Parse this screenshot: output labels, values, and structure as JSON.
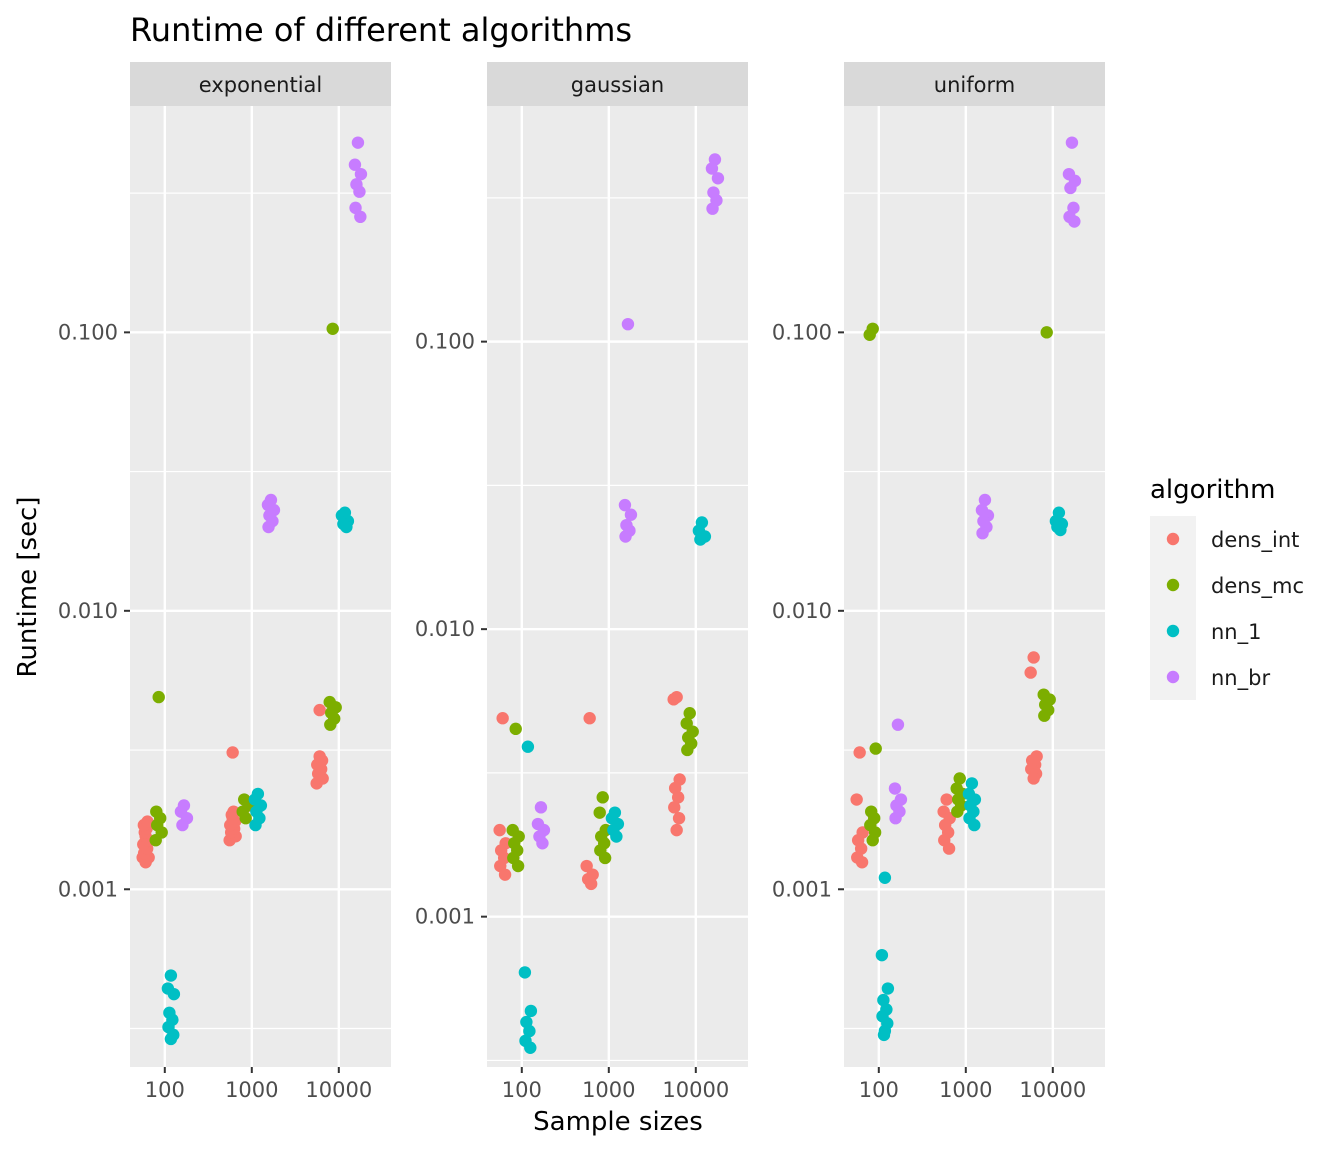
{
  "chart_data": {
    "type": "scatter",
    "title": "Runtime of different algorithms",
    "xlabel": "Sample sizes",
    "ylabel": "Runtime [sec]",
    "x_scale": "log10",
    "y_scale": "log10",
    "x_ticks": [
      100,
      1000,
      10000
    ],
    "x_tick_labels": [
      "100",
      "1000",
      "10000"
    ],
    "y_ticks": [
      0.001,
      0.01,
      0.1
    ],
    "y_tick_labels": [
      "0.001",
      "0.010",
      "0.100"
    ],
    "grid": true,
    "legend": {
      "title": "algorithm",
      "position": "right"
    },
    "series_names": [
      "dens_int",
      "dens_mc",
      "nn_1",
      "nn_br"
    ],
    "colors": {
      "dens_int": "#F8766D",
      "dens_mc": "#7CAE00",
      "nn_1": "#00BFC4",
      "nn_br": "#C77CFF"
    },
    "panels": [
      {
        "name": "exponential",
        "ylim": [
          0.00023,
          0.65
        ],
        "series": [
          {
            "name": "dens_int",
            "points": [
              {
                "x": 100,
                "y": [
                  0.00125,
                  0.0013,
                  0.0013,
                  0.00135,
                  0.0014,
                  0.00145,
                  0.0015,
                  0.00155,
                  0.0016,
                  0.00165,
                  0.0017,
                  0.00175
                ]
              },
              {
                "x": 1000,
                "y": [
                  0.0031,
                  0.0015,
                  0.00155,
                  0.0016,
                  0.00165,
                  0.0017,
                  0.00175,
                  0.0018,
                  0.00185,
                  0.0019
                ]
              },
              {
                "x": 10000,
                "y": [
                  0.0044,
                  0.0024,
                  0.0025,
                  0.0026,
                  0.0027,
                  0.0028,
                  0.0029,
                  0.003
                ]
              }
            ]
          },
          {
            "name": "dens_mc",
            "points": [
              {
                "x": 100,
                "y": [
                  0.0049,
                  0.0015,
                  0.0016,
                  0.0017,
                  0.0018,
                  0.0019
                ]
              },
              {
                "x": 1000,
                "y": [
                  0.0018,
                  0.0019,
                  0.002,
                  0.0021
                ]
              },
              {
                "x": 10000,
                "y": [
                  0.103,
                  0.0047,
                  0.0045,
                  0.0043,
                  0.0041,
                  0.0039
                ]
              }
            ]
          },
          {
            "name": "nn_1",
            "points": [
              {
                "x": 100,
                "y": [
                  0.00049,
                  0.00044,
                  0.00042,
                  0.00036,
                  0.00034,
                  0.00032,
                  0.0003,
                  0.00029
                ]
              },
              {
                "x": 1000,
                "y": [
                  0.0022,
                  0.0021,
                  0.002,
                  0.0019,
                  0.0018,
                  0.0017
                ]
              },
              {
                "x": 10000,
                "y": [
                  0.0225,
                  0.022,
                  0.021,
                  0.0205,
                  0.02
                ]
              }
            ]
          },
          {
            "name": "nn_br",
            "points": [
              {
                "x": 100,
                "y": [
                  0.002,
                  0.0019,
                  0.0018,
                  0.0017
                ]
              },
              {
                "x": 1000,
                "y": [
                  0.025,
                  0.024,
                  0.023,
                  0.022,
                  0.021,
                  0.02
                ]
              },
              {
                "x": 10000,
                "y": [
                  0.48,
                  0.4,
                  0.37,
                  0.34,
                  0.32,
                  0.28,
                  0.26
                ]
              }
            ]
          }
        ]
      },
      {
        "name": "gaussian",
        "ylim": [
          0.0003,
          0.66
        ],
        "series": [
          {
            "name": "dens_int",
            "points": [
              {
                "x": 100,
                "y": [
                  0.0049,
                  0.002,
                  0.0018,
                  0.0017,
                  0.0016,
                  0.0015,
                  0.0014
                ]
              },
              {
                "x": 1000,
                "y": [
                  0.0049,
                  0.0015,
                  0.0014,
                  0.00135,
                  0.0013
                ]
              },
              {
                "x": 10000,
                "y": [
                  0.0058,
                  0.0057,
                  0.003,
                  0.0028,
                  0.0026,
                  0.0024,
                  0.0022,
                  0.002
                ]
              }
            ]
          },
          {
            "name": "dens_mc",
            "points": [
              {
                "x": 100,
                "y": [
                  0.0045,
                  0.002,
                  0.0019,
                  0.0018,
                  0.0017,
                  0.0016,
                  0.0015
                ]
              },
              {
                "x": 1000,
                "y": [
                  0.0026,
                  0.0023,
                  0.002,
                  0.0019,
                  0.0018,
                  0.0017,
                  0.0016
                ]
              },
              {
                "x": 10000,
                "y": [
                  0.0051,
                  0.0047,
                  0.0044,
                  0.0042,
                  0.004,
                  0.0038
                ]
              }
            ]
          },
          {
            "name": "nn_1",
            "points": [
              {
                "x": 100,
                "y": [
                  0.0039,
                  0.00064,
                  0.00047,
                  0.00043,
                  0.0004,
                  0.00037,
                  0.00035
                ]
              },
              {
                "x": 1000,
                "y": [
                  0.0023,
                  0.0022,
                  0.0021,
                  0.002,
                  0.0019
                ]
              },
              {
                "x": 10000,
                "y": [
                  0.0235,
                  0.022,
                  0.021,
                  0.0205
                ]
              }
            ]
          },
          {
            "name": "nn_br",
            "points": [
              {
                "x": 100,
                "y": [
                  0.0024,
                  0.0021,
                  0.002,
                  0.0019,
                  0.0018
                ]
              },
              {
                "x": 1000,
                "y": [
                  0.115,
                  0.027,
                  0.025,
                  0.023,
                  0.022,
                  0.021
                ]
              },
              {
                "x": 10000,
                "y": [
                  0.43,
                  0.4,
                  0.37,
                  0.33,
                  0.31,
                  0.29
                ]
              }
            ]
          }
        ]
      },
      {
        "name": "uniform",
        "ylim": [
          0.00023,
          0.65
        ],
        "series": [
          {
            "name": "dens_int",
            "points": [
              {
                "x": 100,
                "y": [
                  0.0031,
                  0.0021,
                  0.0016,
                  0.0015,
                  0.0014,
                  0.0013,
                  0.00125
                ]
              },
              {
                "x": 1000,
                "y": [
                  0.0021,
                  0.0019,
                  0.0018,
                  0.0017,
                  0.0016,
                  0.0015,
                  0.0014
                ]
              },
              {
                "x": 10000,
                "y": [
                  0.0068,
                  0.006,
                  0.003,
                  0.0029,
                  0.0028,
                  0.0027,
                  0.0026,
                  0.0025
                ]
              }
            ]
          },
          {
            "name": "dens_mc",
            "points": [
              {
                "x": 100,
                "y": [
                  0.103,
                  0.098,
                  0.0032,
                  0.0019,
                  0.0018,
                  0.0017,
                  0.0016,
                  0.0015
                ]
              },
              {
                "x": 1000,
                "y": [
                  0.0025,
                  0.0023,
                  0.0022,
                  0.0021,
                  0.002,
                  0.0019
                ]
              },
              {
                "x": 10000,
                "y": [
                  0.1,
                  0.005,
                  0.0048,
                  0.0046,
                  0.0044,
                  0.0042
                ]
              }
            ]
          },
          {
            "name": "nn_1",
            "points": [
              {
                "x": 100,
                "y": [
                  0.0011,
                  0.00058,
                  0.00044,
                  0.0004,
                  0.00037,
                  0.00035,
                  0.00033,
                  0.00031,
                  0.0003
                ]
              },
              {
                "x": 1000,
                "y": [
                  0.0024,
                  0.0022,
                  0.0021,
                  0.002,
                  0.0019,
                  0.0018,
                  0.0017
                ]
              },
              {
                "x": 10000,
                "y": [
                  0.0225,
                  0.021,
                  0.0205,
                  0.02,
                  0.0195
                ]
              }
            ]
          },
          {
            "name": "nn_br",
            "points": [
              {
                "x": 100,
                "y": [
                  0.0039,
                  0.0023,
                  0.0021,
                  0.002,
                  0.0019,
                  0.0018
                ]
              },
              {
                "x": 1000,
                "y": [
                  0.025,
                  0.023,
                  0.022,
                  0.021,
                  0.02,
                  0.019
                ]
              },
              {
                "x": 10000,
                "y": [
                  0.48,
                  0.37,
                  0.35,
                  0.33,
                  0.28,
                  0.26,
                  0.25
                ]
              }
            ]
          }
        ]
      }
    ]
  }
}
